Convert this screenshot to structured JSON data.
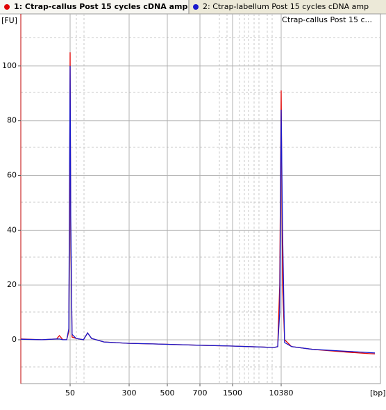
{
  "chart_data": {
    "type": "line",
    "sample_label": "Ctrap-callus Post 15 c...",
    "ylabel": "[FU]",
    "xlabel": "[bp]",
    "x": [
      11,
      21,
      33,
      36,
      40,
      45,
      48,
      49,
      50,
      51,
      53,
      60,
      75,
      85,
      96,
      140,
      300,
      411,
      700,
      1500,
      3950,
      7900,
      9040,
      9800,
      10380,
      10960,
      11900,
      15740,
      36000,
      142000,
      435000
    ],
    "series": [
      {
        "name": "1: Ctrap-callus Post 15 cycles cDNA amp",
        "color": "#e00000",
        "values": [
          0.3,
          0.0,
          0.3,
          1.5,
          0.0,
          0.0,
          3,
          40,
          105,
          40,
          1,
          0.5,
          0.0,
          2.5,
          0.5,
          -0.8,
          -1.3,
          -1.5,
          -2.0,
          -2.3,
          -2.6,
          -2.8,
          -2.5,
          20,
          91,
          20,
          0.0,
          -2.5,
          -3.5,
          -4.5,
          -5.2
        ]
      },
      {
        "name": "2: Ctrap-labellum Post 15 cycles cDNA amp",
        "color": "#1a1acc",
        "values": [
          0.2,
          0.0,
          0.3,
          0.3,
          0.0,
          0.0,
          4,
          56,
          100,
          45,
          2,
          0.5,
          0.0,
          2.5,
          0.5,
          -0.8,
          -1.3,
          -1.5,
          -2.0,
          -2.3,
          -2.6,
          -2.8,
          -2.5,
          10,
          84,
          40,
          -1.0,
          -2.5,
          -3.5,
          -4.2,
          -4.8
        ]
      }
    ],
    "xlim": [
      11,
      435000
    ],
    "xticks": [
      50,
      300,
      500,
      700,
      1500,
      10380
    ],
    "xscale": "log",
    "ylim": [
      -16,
      119
    ],
    "yticks": [
      0,
      20,
      40,
      60,
      80,
      100
    ],
    "grid": true
  }
}
